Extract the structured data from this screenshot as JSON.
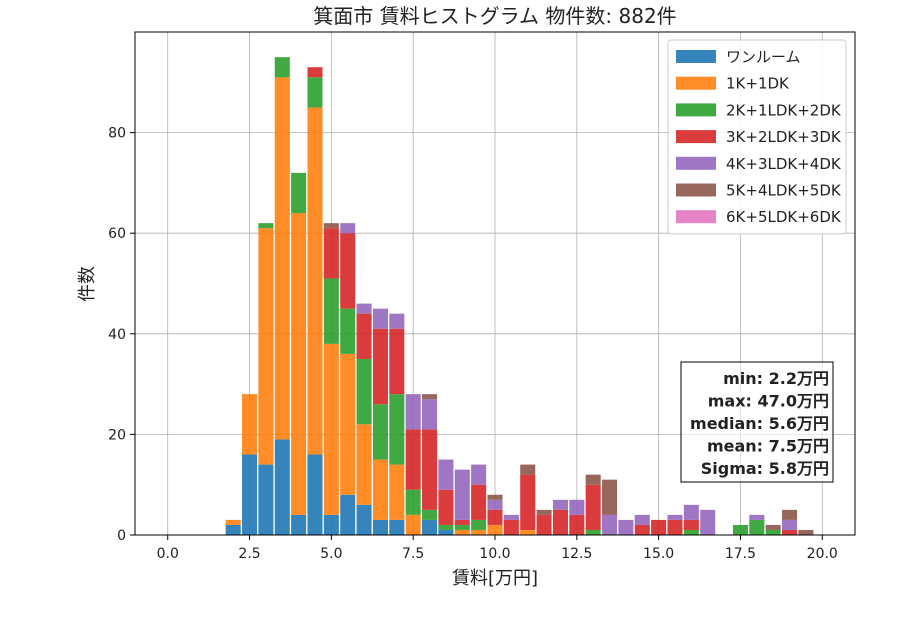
{
  "chart_data": {
    "type": "bar",
    "stacked": true,
    "title": "箕面市 賃料ヒストグラム 物件数: 882件",
    "xlabel": "賃料[万円]",
    "ylabel": "件数",
    "xlim": [
      -1.0,
      21.0
    ],
    "ylim": [
      0,
      100
    ],
    "xticks": [
      "0.0",
      "2.5",
      "5.0",
      "7.5",
      "10.0",
      "12.5",
      "15.0",
      "17.5",
      "20.0"
    ],
    "yticks": [
      "0",
      "20",
      "40",
      "60",
      "80"
    ],
    "grid": true,
    "legend_position": "top-right",
    "bin_width": 0.5,
    "x": [
      2.0,
      2.5,
      3.0,
      3.5,
      4.0,
      4.5,
      5.0,
      5.5,
      6.0,
      6.5,
      7.0,
      7.5,
      8.0,
      8.5,
      9.0,
      9.5,
      10.0,
      10.5,
      11.0,
      11.5,
      12.0,
      12.5,
      13.0,
      13.5,
      14.0,
      14.5,
      15.0,
      15.5,
      16.0,
      16.5,
      17.0,
      17.5,
      18.0,
      18.5,
      19.0,
      19.5
    ],
    "series": [
      {
        "name": "ワンルーム",
        "color": "#1f77b4",
        "values": [
          2,
          16,
          14,
          19,
          4,
          16,
          4,
          8,
          6,
          3,
          3,
          0,
          3,
          1,
          0,
          0,
          0,
          0,
          0,
          0,
          0,
          0,
          0,
          0,
          0,
          0,
          0,
          0,
          0,
          0,
          0,
          0,
          0,
          0,
          0,
          0
        ]
      },
      {
        "name": "1K+1DK",
        "color": "#ff7f0e",
        "values": [
          1,
          12,
          47,
          72,
          60,
          69,
          34,
          28,
          16,
          12,
          11,
          4,
          0,
          0,
          1,
          1,
          2,
          0,
          1,
          0,
          0,
          0,
          0,
          0,
          0,
          0,
          0,
          0,
          0,
          0,
          0,
          0,
          0,
          0,
          0,
          0
        ]
      },
      {
        "name": "2K+1LDK+2DK",
        "color": "#2ca02c",
        "values": [
          0,
          0,
          1,
          4,
          8,
          6,
          13,
          9,
          13,
          11,
          14,
          5,
          2,
          1,
          1,
          2,
          0,
          0,
          0,
          0,
          0,
          0,
          1,
          0,
          0,
          0,
          0,
          0,
          1,
          0,
          0,
          2,
          3,
          1,
          0,
          0
        ]
      },
      {
        "name": "3K+2LDK+3DK",
        "color": "#d62728",
        "values": [
          0,
          0,
          0,
          0,
          0,
          2,
          10,
          15,
          9,
          15,
          13,
          12,
          16,
          7,
          1,
          7,
          3,
          3,
          11,
          4,
          5,
          4,
          9,
          0,
          0,
          2,
          3,
          3,
          2,
          0,
          0,
          0,
          0,
          0,
          1,
          0
        ]
      },
      {
        "name": "4K+3LDK+4DK",
        "color": "#9467bd",
        "values": [
          0,
          0,
          0,
          0,
          0,
          0,
          0,
          2,
          2,
          4,
          3,
          7,
          6,
          6,
          10,
          4,
          2,
          1,
          0,
          0,
          2,
          3,
          0,
          4,
          3,
          2,
          0,
          1,
          3,
          5,
          0,
          0,
          1,
          0,
          2,
          0
        ]
      },
      {
        "name": "5K+4LDK+5DK",
        "color": "#8c564b",
        "values": [
          0,
          0,
          0,
          0,
          0,
          0,
          1,
          0,
          0,
          0,
          0,
          0,
          1,
          0,
          0,
          0,
          1,
          0,
          2,
          1,
          0,
          0,
          2,
          7,
          0,
          0,
          0,
          0,
          0,
          0,
          0,
          0,
          0,
          1,
          2,
          1
        ]
      },
      {
        "name": "6K+5LDK+6DK",
        "color": "#e377c2",
        "values": [
          0,
          0,
          0,
          0,
          0,
          0,
          0,
          0,
          0,
          0,
          0,
          0,
          0,
          0,
          0,
          0,
          0,
          0,
          0,
          0,
          0,
          0,
          0,
          0,
          0,
          0,
          0,
          0,
          0,
          0,
          0,
          0,
          0,
          0,
          0,
          0
        ]
      }
    ],
    "annotation": [
      "min: 2.2万円",
      "max: 47.0万円",
      "median: 5.6万円",
      "mean: 7.5万円",
      "Sigma: 5.8万円"
    ]
  }
}
